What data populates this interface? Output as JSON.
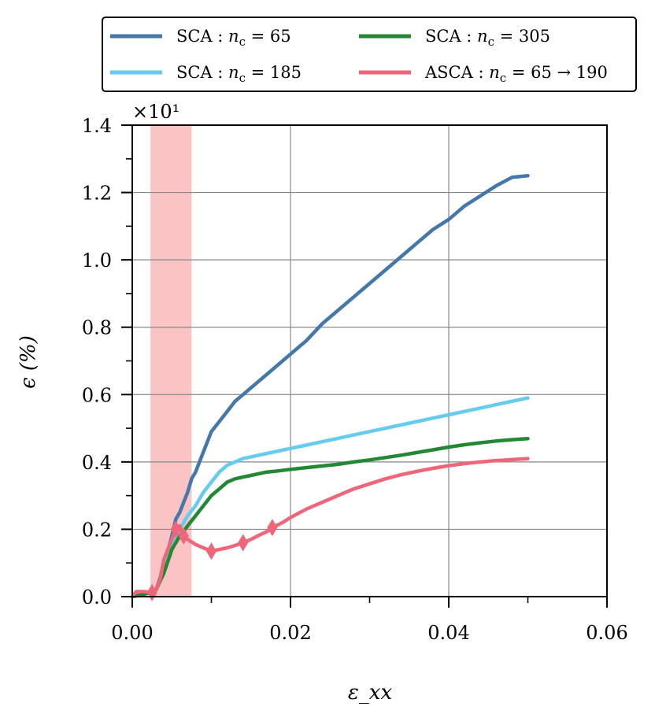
{
  "chart_data": {
    "type": "line",
    "title": "",
    "xlabel": "ε_xx",
    "ylabel": "ϵ (%)",
    "y_multiplier_label": "×10¹",
    "xlim": [
      0,
      0.06
    ],
    "ylim": [
      0,
      1.4
    ],
    "x_ticks": [
      "0.00",
      "0.02",
      "0.04",
      "0.06"
    ],
    "y_ticks": [
      "0.0",
      "0.2",
      "0.4",
      "0.6",
      "0.8",
      "1.0",
      "1.2",
      "1.4"
    ],
    "grid": true,
    "legend_position": "top (outside, above plot)",
    "highlight_band": {
      "x_range": [
        0.0023,
        0.0075
      ],
      "color": "#fbc4c4"
    },
    "series": [
      {
        "name": "SCA : n_c = 65",
        "legend": {
          "prefix": "SCA : ",
          "var": "n",
          "sub": "c",
          "suffix": " = 65"
        },
        "color": "#4477aa",
        "marker": null,
        "points": [
          [
            0,
            0
          ],
          [
            0.001,
            0.005
          ],
          [
            0.002,
            0.01
          ],
          [
            0.003,
            0.02
          ],
          [
            0.004,
            0.09
          ],
          [
            0.005,
            0.18
          ],
          [
            0.0055,
            0.23
          ],
          [
            0.006,
            0.25
          ],
          [
            0.0065,
            0.28
          ],
          [
            0.007,
            0.31
          ],
          [
            0.0075,
            0.35
          ],
          [
            0.008,
            0.37
          ],
          [
            0.009,
            0.43
          ],
          [
            0.01,
            0.49
          ],
          [
            0.011,
            0.52
          ],
          [
            0.012,
            0.55
          ],
          [
            0.013,
            0.58
          ],
          [
            0.014,
            0.6
          ],
          [
            0.015,
            0.62
          ],
          [
            0.016,
            0.64
          ],
          [
            0.017,
            0.66
          ],
          [
            0.018,
            0.68
          ],
          [
            0.02,
            0.72
          ],
          [
            0.022,
            0.76
          ],
          [
            0.024,
            0.81
          ],
          [
            0.026,
            0.85
          ],
          [
            0.028,
            0.89
          ],
          [
            0.03,
            0.93
          ],
          [
            0.032,
            0.97
          ],
          [
            0.034,
            1.01
          ],
          [
            0.036,
            1.05
          ],
          [
            0.038,
            1.09
          ],
          [
            0.04,
            1.12
          ],
          [
            0.042,
            1.16
          ],
          [
            0.044,
            1.19
          ],
          [
            0.046,
            1.22
          ],
          [
            0.048,
            1.245
          ],
          [
            0.05,
            1.25
          ]
        ]
      },
      {
        "name": "SCA : n_c = 185",
        "legend": {
          "prefix": "SCA : ",
          "var": "n",
          "sub": "c",
          "suffix": " = 185"
        },
        "color": "#66ccee",
        "marker": null,
        "points": [
          [
            0,
            0
          ],
          [
            0.001,
            0.005
          ],
          [
            0.002,
            0.01
          ],
          [
            0.003,
            0.02
          ],
          [
            0.004,
            0.08
          ],
          [
            0.005,
            0.16
          ],
          [
            0.006,
            0.2
          ],
          [
            0.007,
            0.24
          ],
          [
            0.008,
            0.27
          ],
          [
            0.009,
            0.31
          ],
          [
            0.01,
            0.34
          ],
          [
            0.011,
            0.37
          ],
          [
            0.012,
            0.39
          ],
          [
            0.013,
            0.4
          ],
          [
            0.014,
            0.41
          ],
          [
            0.015,
            0.415
          ],
          [
            0.016,
            0.42
          ],
          [
            0.018,
            0.43
          ],
          [
            0.02,
            0.44
          ],
          [
            0.022,
            0.45
          ],
          [
            0.024,
            0.46
          ],
          [
            0.026,
            0.47
          ],
          [
            0.028,
            0.48
          ],
          [
            0.03,
            0.49
          ],
          [
            0.032,
            0.5
          ],
          [
            0.034,
            0.51
          ],
          [
            0.036,
            0.52
          ],
          [
            0.038,
            0.53
          ],
          [
            0.04,
            0.54
          ],
          [
            0.042,
            0.55
          ],
          [
            0.044,
            0.56
          ],
          [
            0.046,
            0.57
          ],
          [
            0.048,
            0.58
          ],
          [
            0.05,
            0.59
          ]
        ]
      },
      {
        "name": "SCA : n_c = 305",
        "legend": {
          "prefix": "SCA : ",
          "var": "n",
          "sub": "c",
          "suffix": " = 305"
        },
        "color": "#228833",
        "marker": null,
        "points": [
          [
            0,
            0
          ],
          [
            0.001,
            0.005
          ],
          [
            0.002,
            0.01
          ],
          [
            0.003,
            0.02
          ],
          [
            0.004,
            0.07
          ],
          [
            0.005,
            0.14
          ],
          [
            0.006,
            0.18
          ],
          [
            0.007,
            0.21
          ],
          [
            0.008,
            0.24
          ],
          [
            0.009,
            0.27
          ],
          [
            0.01,
            0.3
          ],
          [
            0.011,
            0.32
          ],
          [
            0.012,
            0.34
          ],
          [
            0.013,
            0.35
          ],
          [
            0.014,
            0.355
          ],
          [
            0.015,
            0.36
          ],
          [
            0.016,
            0.365
          ],
          [
            0.017,
            0.37
          ],
          [
            0.018,
            0.372
          ],
          [
            0.02,
            0.378
          ],
          [
            0.022,
            0.383
          ],
          [
            0.024,
            0.388
          ],
          [
            0.026,
            0.393
          ],
          [
            0.028,
            0.4
          ],
          [
            0.03,
            0.406
          ],
          [
            0.032,
            0.413
          ],
          [
            0.034,
            0.42
          ],
          [
            0.036,
            0.428
          ],
          [
            0.038,
            0.436
          ],
          [
            0.04,
            0.444
          ],
          [
            0.042,
            0.451
          ],
          [
            0.044,
            0.457
          ],
          [
            0.046,
            0.462
          ],
          [
            0.048,
            0.466
          ],
          [
            0.05,
            0.469
          ]
        ]
      },
      {
        "name": "ASCA : n_c = 65 → 190",
        "legend": {
          "prefix": "ASCA : ",
          "var": "n",
          "sub": "c",
          "suffix": " = 65 → 190"
        },
        "color": "#ee6677",
        "marker": "diamond",
        "points": [
          [
            0,
            0
          ],
          [
            0.0005,
            0.015
          ],
          [
            0.0015,
            0.015
          ],
          [
            0.0025,
            0.012
          ],
          [
            0.003,
            0.02
          ],
          [
            0.0035,
            0.05
          ],
          [
            0.004,
            0.11
          ],
          [
            0.0045,
            0.14
          ],
          [
            0.005,
            0.17
          ],
          [
            0.0055,
            0.2
          ],
          [
            0.006,
            0.21
          ],
          [
            0.0065,
            0.18
          ],
          [
            0.007,
            0.17
          ],
          [
            0.008,
            0.155
          ],
          [
            0.009,
            0.145
          ],
          [
            0.01,
            0.135
          ],
          [
            0.011,
            0.14
          ],
          [
            0.012,
            0.145
          ],
          [
            0.013,
            0.152
          ],
          [
            0.014,
            0.16
          ],
          [
            0.015,
            0.17
          ],
          [
            0.016,
            0.182
          ],
          [
            0.017,
            0.193
          ],
          [
            0.0177,
            0.205
          ],
          [
            0.019,
            0.22
          ],
          [
            0.02,
            0.235
          ],
          [
            0.022,
            0.26
          ],
          [
            0.024,
            0.28
          ],
          [
            0.026,
            0.3
          ],
          [
            0.028,
            0.32
          ],
          [
            0.03,
            0.335
          ],
          [
            0.032,
            0.35
          ],
          [
            0.034,
            0.362
          ],
          [
            0.036,
            0.372
          ],
          [
            0.038,
            0.381
          ],
          [
            0.04,
            0.389
          ],
          [
            0.042,
            0.395
          ],
          [
            0.044,
            0.4
          ],
          [
            0.046,
            0.404
          ],
          [
            0.048,
            0.407
          ],
          [
            0.05,
            0.41
          ]
        ],
        "marker_points": [
          [
            0.0025,
            0.012
          ],
          [
            0.0055,
            0.2
          ],
          [
            0.0065,
            0.18
          ],
          [
            0.01,
            0.135
          ],
          [
            0.014,
            0.16
          ],
          [
            0.0177,
            0.205
          ]
        ]
      }
    ]
  }
}
